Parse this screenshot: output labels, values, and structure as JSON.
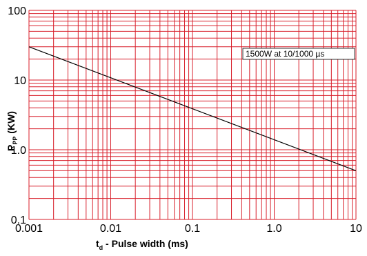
{
  "chart_data": {
    "type": "line",
    "x_scale": "log",
    "y_scale": "log",
    "xlim": [
      0.001,
      10
    ],
    "ylim": [
      0.1,
      100
    ],
    "x_ticks": [
      "0.001",
      "0.01",
      "0.1",
      "1.0",
      "10"
    ],
    "y_ticks": [
      "0.1",
      "1.0",
      "10",
      "100"
    ],
    "xlabel_main": "t",
    "xlabel_sub": "d",
    "xlabel_rest": " - Pulse width (ms)",
    "ylabel_main": "P",
    "ylabel_sub": "PP",
    "ylabel_rest": " (KW)",
    "grid": true,
    "grid_color": "#d81e2a",
    "series": [
      {
        "color": "#000000",
        "x": [
          0.001,
          10
        ],
        "y": [
          30,
          0.5
        ]
      }
    ],
    "annotations": [
      {
        "text": "1500W at 10/1000 µs"
      }
    ]
  }
}
